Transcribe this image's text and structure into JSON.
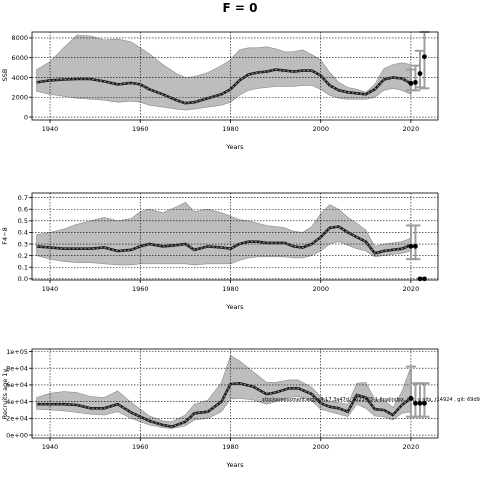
{
  "figure": {
    "title": "F = 0"
  },
  "chart_data": [
    {
      "type": "line",
      "xlabel": "Years",
      "ylabel": "SSB",
      "xlim": [
        1936,
        2026
      ],
      "ylim": [
        -300,
        8600
      ],
      "xticks": [
        1940,
        1960,
        1980,
        2000,
        2020
      ],
      "yticks": [
        0,
        2000,
        4000,
        6000,
        8000
      ],
      "ytick_labels": [
        "0",
        "2000",
        "4000",
        "6000",
        "8000"
      ],
      "grid": true,
      "series": [
        {
          "role": "estimate",
          "x": [
            1937,
            1940,
            1943,
            1946,
            1949,
            1952,
            1955,
            1958,
            1960,
            1962,
            1965,
            1968,
            1970,
            1972,
            1975,
            1978,
            1980,
            1982,
            1984,
            1986,
            1988,
            1990,
            1992,
            1994,
            1996,
            1998,
            2000,
            2002,
            2004,
            2006,
            2008,
            2010,
            2012,
            2014,
            2016,
            2018,
            2020
          ],
          "y": [
            3500,
            3700,
            3800,
            3850,
            3850,
            3600,
            3300,
            3450,
            3300,
            2800,
            2300,
            1700,
            1400,
            1500,
            1900,
            2300,
            2800,
            3700,
            4300,
            4500,
            4600,
            4800,
            4700,
            4600,
            4700,
            4700,
            4200,
            3200,
            2700,
            2500,
            2400,
            2300,
            2800,
            3800,
            4000,
            3900,
            3400
          ]
        },
        {
          "role": "ci-lower",
          "x": [
            1937,
            1940,
            1943,
            1946,
            1949,
            1952,
            1955,
            1958,
            1960,
            1962,
            1965,
            1968,
            1970,
            1972,
            1975,
            1978,
            1980,
            1982,
            1984,
            1986,
            1988,
            1990,
            1992,
            1994,
            1996,
            1998,
            2000,
            2002,
            2004,
            2006,
            2008,
            2010,
            2012,
            2014,
            2016,
            2018,
            2020
          ],
          "y": [
            2600,
            2300,
            2100,
            1900,
            1800,
            1700,
            1500,
            1600,
            1500,
            1200,
            1000,
            800,
            700,
            800,
            1000,
            1200,
            1500,
            2200,
            2700,
            2900,
            3000,
            3100,
            3100,
            3100,
            3200,
            3200,
            2800,
            2200,
            1900,
            1800,
            1800,
            1800,
            2000,
            2700,
            2900,
            2700,
            2300
          ]
        },
        {
          "role": "ci-upper",
          "x": [
            1937,
            1940,
            1943,
            1946,
            1949,
            1952,
            1955,
            1958,
            1960,
            1962,
            1965,
            1968,
            1970,
            1972,
            1975,
            1978,
            1980,
            1982,
            1984,
            1986,
            1988,
            1990,
            1992,
            1994,
            1996,
            1998,
            2000,
            2002,
            2004,
            2006,
            2008,
            2010,
            2012,
            2014,
            2016,
            2018,
            2020
          ],
          "y": [
            4800,
            5600,
            7000,
            8300,
            8200,
            7800,
            7900,
            7600,
            7000,
            6400,
            5300,
            4400,
            4000,
            4100,
            4500,
            5200,
            5800,
            6800,
            7000,
            7000,
            7100,
            6900,
            6600,
            6600,
            6800,
            6300,
            5800,
            4500,
            3500,
            3000,
            2800,
            2500,
            3300,
            4900,
            5300,
            5500,
            5300
          ]
        },
        {
          "role": "projection",
          "x": [
            2020,
            2021,
            2022,
            2023
          ],
          "y": [
            3400,
            3500,
            4400,
            6100
          ],
          "error_low": [
            2700,
            2700,
            3000,
            2900
          ],
          "error_high": [
            4800,
            5200,
            6700,
            8600
          ]
        }
      ]
    },
    {
      "type": "line",
      "xlabel": "Years",
      "ylabel": "F4−8",
      "xlim": [
        1936,
        2026
      ],
      "ylim": [
        -0.01,
        0.74
      ],
      "xticks": [
        1940,
        1960,
        1980,
        2000,
        2020
      ],
      "yticks": [
        0,
        0.1,
        0.2,
        0.3,
        0.4,
        0.5,
        0.6,
        0.7
      ],
      "ytick_labels": [
        "0.0",
        "0.1",
        "0.2",
        "0.3",
        "0.4",
        "0.5",
        "0.6",
        "0.7"
      ],
      "grid": true,
      "series": [
        {
          "role": "estimate",
          "x": [
            1937,
            1940,
            1943,
            1946,
            1949,
            1952,
            1955,
            1958,
            1960,
            1962,
            1965,
            1968,
            1970,
            1972,
            1975,
            1978,
            1980,
            1982,
            1984,
            1986,
            1988,
            1990,
            1992,
            1994,
            1996,
            1998,
            2000,
            2002,
            2004,
            2006,
            2008,
            2010,
            2012,
            2014,
            2016,
            2018,
            2020
          ],
          "y": [
            0.28,
            0.27,
            0.26,
            0.26,
            0.26,
            0.27,
            0.24,
            0.25,
            0.28,
            0.3,
            0.28,
            0.29,
            0.3,
            0.25,
            0.28,
            0.27,
            0.26,
            0.3,
            0.32,
            0.32,
            0.31,
            0.31,
            0.31,
            0.28,
            0.27,
            0.3,
            0.36,
            0.44,
            0.45,
            0.4,
            0.36,
            0.32,
            0.22,
            0.24,
            0.25,
            0.26,
            0.29
          ]
        },
        {
          "role": "ci-lower",
          "x": [
            1937,
            1940,
            1943,
            1946,
            1949,
            1952,
            1955,
            1958,
            1960,
            1962,
            1965,
            1968,
            1970,
            1972,
            1975,
            1978,
            1980,
            1982,
            1984,
            1986,
            1988,
            1990,
            1992,
            1994,
            1996,
            1998,
            2000,
            2002,
            2004,
            2006,
            2008,
            2010,
            2012,
            2014,
            2016,
            2018,
            2020
          ],
          "y": [
            0.2,
            0.17,
            0.15,
            0.14,
            0.14,
            0.13,
            0.12,
            0.12,
            0.13,
            0.13,
            0.13,
            0.13,
            0.13,
            0.12,
            0.13,
            0.13,
            0.13,
            0.16,
            0.18,
            0.19,
            0.19,
            0.19,
            0.19,
            0.18,
            0.18,
            0.2,
            0.24,
            0.3,
            0.32,
            0.29,
            0.26,
            0.24,
            0.19,
            0.2,
            0.21,
            0.22,
            0.24
          ]
        },
        {
          "role": "ci-upper",
          "x": [
            1937,
            1940,
            1943,
            1946,
            1949,
            1952,
            1955,
            1958,
            1960,
            1962,
            1965,
            1968,
            1970,
            1972,
            1975,
            1978,
            1980,
            1982,
            1984,
            1986,
            1988,
            1990,
            1992,
            1994,
            1996,
            1998,
            2000,
            2002,
            2004,
            2006,
            2008,
            2010,
            2012,
            2014,
            2016,
            2018,
            2020
          ],
          "y": [
            0.38,
            0.4,
            0.43,
            0.47,
            0.5,
            0.53,
            0.5,
            0.52,
            0.58,
            0.6,
            0.57,
            0.62,
            0.66,
            0.58,
            0.6,
            0.57,
            0.54,
            0.51,
            0.5,
            0.48,
            0.46,
            0.45,
            0.44,
            0.41,
            0.4,
            0.45,
            0.56,
            0.64,
            0.6,
            0.53,
            0.48,
            0.42,
            0.28,
            0.3,
            0.31,
            0.32,
            0.35
          ]
        },
        {
          "role": "projection",
          "x": [
            2020,
            2021,
            2022,
            2023
          ],
          "y": [
            0.28,
            0.28,
            0.0,
            0.0
          ],
          "error_low": [
            0.17,
            0.17,
            0.0,
            0.0
          ],
          "error_high": [
            0.46,
            0.46,
            0.0,
            0.0
          ]
        }
      ]
    },
    {
      "type": "line",
      "xlabel": "Years",
      "ylabel": "Recruits age 1y",
      "xlim": [
        1936,
        2026
      ],
      "ylim": [
        -3500,
        103000
      ],
      "xticks": [
        1940,
        1960,
        1980,
        2000,
        2020
      ],
      "yticks": [
        0,
        20000,
        40000,
        60000,
        80000,
        100000
      ],
      "ytick_labels": [
        "0e+00",
        "2e+04",
        "4e+04",
        "6e+04",
        "8e+04",
        "1e+05"
      ],
      "grid": true,
      "annotation": "stockassessment.org, s4.17.3a47d, 2021-03-1 finalindex, ins, u nits, r14924 , git: 69d9",
      "series": [
        {
          "role": "estimate",
          "x": [
            1937,
            1940,
            1943,
            1946,
            1949,
            1952,
            1955,
            1958,
            1960,
            1962,
            1965,
            1967,
            1970,
            1972,
            1975,
            1978,
            1980,
            1982,
            1985,
            1988,
            1990,
            1993,
            1995,
            1998,
            2000,
            2002,
            2004,
            2006,
            2008,
            2010,
            2012,
            2014,
            2016,
            2018,
            2020
          ],
          "y": [
            37000,
            37000,
            37000,
            36000,
            32000,
            32000,
            37000,
            27000,
            22000,
            17000,
            12000,
            10000,
            16000,
            26000,
            28000,
            40000,
            61000,
            62000,
            58000,
            49000,
            51000,
            56000,
            56000,
            49000,
            38000,
            34000,
            32000,
            28000,
            48000,
            45000,
            31000,
            30000,
            24000,
            36000,
            44000
          ]
        },
        {
          "role": "ci-lower",
          "x": [
            1937,
            1940,
            1943,
            1946,
            1949,
            1952,
            1955,
            1958,
            1960,
            1962,
            1965,
            1967,
            1970,
            1972,
            1975,
            1978,
            1980,
            1982,
            1985,
            1988,
            1990,
            1993,
            1995,
            1998,
            2000,
            2002,
            2004,
            2006,
            2008,
            2010,
            2012,
            2014,
            2016,
            2018,
            2020
          ],
          "y": [
            31000,
            30000,
            29000,
            27000,
            25000,
            24000,
            28000,
            20000,
            16000,
            12000,
            9000,
            8000,
            11000,
            18000,
            20000,
            28000,
            43000,
            44000,
            42000,
            37000,
            40000,
            45000,
            46000,
            41000,
            31000,
            28000,
            25000,
            22000,
            37000,
            32000,
            23000,
            22000,
            18000,
            26000,
            28000
          ]
        },
        {
          "role": "ci-upper",
          "x": [
            1937,
            1940,
            1943,
            1946,
            1949,
            1952,
            1955,
            1958,
            1960,
            1962,
            1965,
            1967,
            1970,
            1972,
            1975,
            1978,
            1980,
            1982,
            1985,
            1988,
            1990,
            1993,
            1995,
            1998,
            2000,
            2002,
            2004,
            2006,
            2008,
            2010,
            2012,
            2014,
            2016,
            2018,
            2020
          ],
          "y": [
            45000,
            50000,
            52000,
            51000,
            46000,
            45000,
            53000,
            39000,
            31000,
            23000,
            17000,
            16000,
            24000,
            37000,
            42000,
            63000,
            95000,
            89000,
            76000,
            63000,
            63000,
            66000,
            66000,
            57000,
            46000,
            40000,
            39000,
            37000,
            62000,
            63000,
            43000,
            42000,
            33000,
            52000,
            82000
          ]
        },
        {
          "role": "projection",
          "x": [
            2020,
            2021,
            2022,
            2023
          ],
          "y": [
            44000,
            38000,
            38000,
            38000
          ],
          "error_low": [
            22000,
            22000,
            22000,
            22000
          ],
          "error_high": [
            82000,
            62000,
            62000,
            62000
          ]
        }
      ]
    }
  ]
}
